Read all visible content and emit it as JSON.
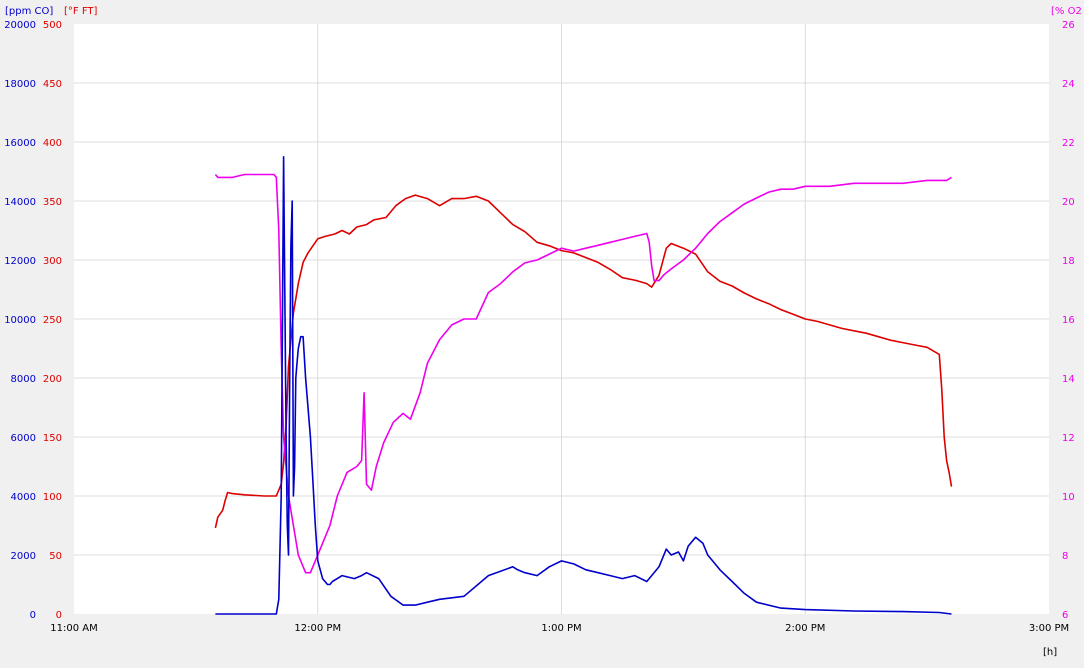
{
  "chart_data": {
    "type": "line",
    "title": "",
    "axes": {
      "co": {
        "label": "[ppm CO]",
        "color": "#0000cc",
        "range": [
          0,
          20000
        ],
        "ticks": [
          0,
          2000,
          4000,
          6000,
          8000,
          10000,
          12000,
          14000,
          16000,
          18000,
          20000
        ],
        "side": "left-outer"
      },
      "temp": {
        "label": "[°F FT]",
        "color": "#dd0000",
        "range": [
          0,
          500
        ],
        "ticks": [
          0,
          50,
          100,
          150,
          200,
          250,
          300,
          350,
          400,
          450,
          500
        ],
        "side": "left-inner"
      },
      "o2": {
        "label": "[% O2",
        "color": "#ee00ee",
        "range": [
          6,
          26
        ],
        "ticks": [
          6,
          8,
          10,
          12,
          14,
          16,
          18,
          20,
          22,
          24,
          26
        ],
        "side": "right"
      },
      "x": {
        "label": "[h]",
        "range_hours": [
          11,
          15
        ],
        "tick_hours": [
          11,
          12,
          13,
          14,
          15
        ],
        "tick_labels": [
          "11:00 AM",
          "12:00 PM",
          "1:00 PM",
          "2:00 PM",
          "3:00 PM"
        ]
      }
    },
    "grid": true,
    "x_unit": "hours (decimal clock time)",
    "series": [
      {
        "key": "temp",
        "name": "[°F FT]",
        "color": "#dd0000",
        "axis": "temp",
        "x": [
          11.58,
          11.59,
          11.61,
          11.62,
          11.63,
          11.65,
          11.7,
          11.78,
          11.83,
          11.85,
          11.86,
          11.87,
          11.88,
          11.9,
          11.92,
          11.94,
          11.96,
          11.98,
          12.0,
          12.03,
          12.07,
          12.1,
          12.13,
          12.16,
          12.2,
          12.23,
          12.28,
          12.32,
          12.36,
          12.4,
          12.45,
          12.5,
          12.55,
          12.6,
          12.65,
          12.7,
          12.75,
          12.8,
          12.85,
          12.9,
          12.95,
          13.0,
          13.05,
          13.1,
          13.15,
          13.2,
          13.25,
          13.3,
          13.35,
          13.37,
          13.4,
          13.43,
          13.45,
          13.5,
          13.55,
          13.6,
          13.65,
          13.7,
          13.75,
          13.8,
          13.85,
          13.9,
          13.95,
          14.0,
          14.05,
          14.1,
          14.15,
          14.2,
          14.25,
          14.3,
          14.35,
          14.4,
          14.45,
          14.5,
          14.55,
          14.56,
          14.57,
          14.58,
          14.59,
          14.6
        ],
        "y": [
          73,
          82,
          88,
          96,
          103,
          102,
          101,
          100,
          100,
          110,
          128,
          160,
          210,
          255,
          280,
          298,
          306,
          312,
          318,
          320,
          322,
          325,
          322,
          328,
          330,
          334,
          336,
          346,
          352,
          355,
          352,
          346,
          352,
          352,
          354,
          350,
          340,
          330,
          324,
          315,
          312,
          308,
          306,
          302,
          298,
          292,
          285,
          283,
          280,
          277,
          287,
          310,
          314,
          310,
          305,
          290,
          282,
          278,
          272,
          267,
          263,
          258,
          254,
          250,
          248,
          245,
          242,
          240,
          238,
          235,
          232,
          230,
          228,
          226,
          220,
          190,
          150,
          130,
          120,
          108
        ]
      },
      {
        "key": "o2",
        "name": "[% O2",
        "color": "#ee00ee",
        "axis": "o2",
        "x": [
          11.58,
          11.59,
          11.65,
          11.7,
          11.75,
          11.8,
          11.82,
          11.83,
          11.84,
          11.85,
          11.86,
          11.87,
          11.88,
          11.9,
          11.92,
          11.95,
          11.97,
          11.99,
          12.01,
          12.05,
          12.08,
          12.12,
          12.16,
          12.18,
          12.19,
          12.2,
          12.22,
          12.24,
          12.27,
          12.31,
          12.35,
          12.38,
          12.42,
          12.45,
          12.5,
          12.55,
          12.6,
          12.65,
          12.7,
          12.75,
          12.8,
          12.85,
          12.9,
          12.95,
          13.0,
          13.05,
          13.1,
          13.15,
          13.2,
          13.25,
          13.3,
          13.35,
          13.36,
          13.37,
          13.38,
          13.4,
          13.42,
          13.45,
          13.5,
          13.55,
          13.6,
          13.65,
          13.7,
          13.75,
          13.8,
          13.85,
          13.9,
          13.95,
          14.0,
          14.1,
          14.2,
          14.3,
          14.4,
          14.5,
          14.55,
          14.58,
          14.6
        ],
        "y": [
          20.9,
          20.8,
          20.8,
          20.9,
          20.9,
          20.9,
          20.9,
          20.8,
          19.0,
          15.0,
          12.0,
          11.0,
          10.0,
          9.0,
          8.0,
          7.4,
          7.4,
          7.8,
          8.2,
          9.0,
          10.0,
          10.8,
          11.0,
          11.2,
          13.5,
          10.4,
          10.2,
          11.0,
          11.8,
          12.5,
          12.8,
          12.6,
          13.5,
          14.5,
          15.3,
          15.8,
          16.0,
          16.0,
          16.9,
          17.2,
          17.6,
          17.9,
          18.0,
          18.2,
          18.4,
          18.3,
          18.4,
          18.5,
          18.6,
          18.7,
          18.8,
          18.9,
          18.6,
          17.8,
          17.3,
          17.3,
          17.5,
          17.7,
          18.0,
          18.4,
          18.9,
          19.3,
          19.6,
          19.9,
          20.1,
          20.3,
          20.4,
          20.4,
          20.5,
          20.5,
          20.6,
          20.6,
          20.6,
          20.7,
          20.7,
          20.7,
          20.8
        ]
      },
      {
        "key": "co",
        "name": "[ppm CO]",
        "color": "#0000cc",
        "axis": "co",
        "x": [
          11.58,
          11.83,
          11.84,
          11.85,
          11.86,
          11.87,
          11.875,
          11.88,
          11.885,
          11.89,
          11.895,
          11.9,
          11.905,
          11.91,
          11.915,
          11.92,
          11.93,
          11.94,
          11.95,
          11.96,
          11.97,
          11.98,
          11.99,
          12.0,
          12.02,
          12.04,
          12.05,
          12.06,
          12.08,
          12.1,
          12.15,
          12.18,
          12.2,
          12.25,
          12.3,
          12.35,
          12.4,
          12.45,
          12.5,
          12.6,
          12.7,
          12.8,
          12.82,
          12.85,
          12.9,
          12.95,
          13.0,
          13.05,
          13.1,
          13.15,
          13.2,
          13.25,
          13.3,
          13.35,
          13.4,
          13.43,
          13.45,
          13.48,
          13.5,
          13.52,
          13.55,
          13.58,
          13.6,
          13.63,
          13.65,
          13.7,
          13.75,
          13.8,
          13.9,
          14.0,
          14.2,
          14.4,
          14.55,
          14.6
        ],
        "y": [
          0,
          0,
          500,
          4000,
          15500,
          6000,
          3000,
          2000,
          8000,
          12500,
          14000,
          4000,
          5000,
          8000,
          8500,
          9000,
          9400,
          9400,
          8000,
          7000,
          6000,
          4500,
          3000,
          1800,
          1200,
          1000,
          1000,
          1100,
          1200,
          1300,
          1200,
          1300,
          1400,
          1200,
          600,
          300,
          300,
          400,
          500,
          600,
          1300,
          1600,
          1500,
          1400,
          1300,
          1600,
          1800,
          1700,
          1500,
          1400,
          1300,
          1200,
          1300,
          1100,
          1600,
          2200,
          2000,
          2100,
          1800,
          2300,
          2600,
          2400,
          2000,
          1700,
          1500,
          1100,
          700,
          400,
          200,
          150,
          100,
          80,
          50,
          0
        ]
      }
    ]
  }
}
